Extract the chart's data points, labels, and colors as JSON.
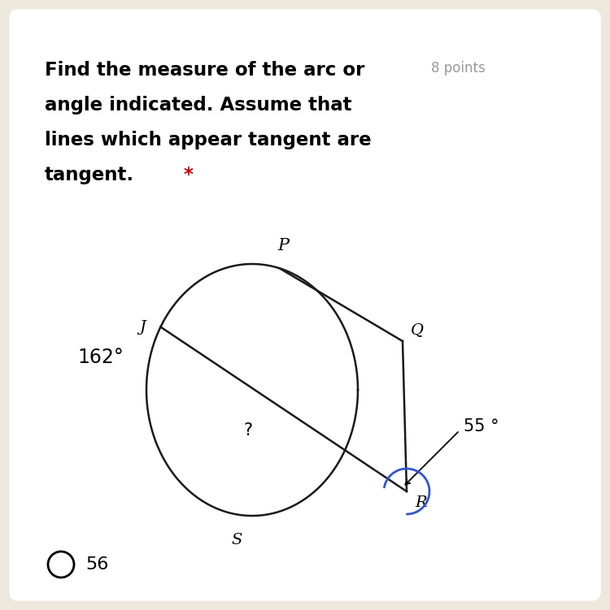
{
  "bg_color": "#ede8dc",
  "card_color": "#ffffff",
  "points_text": "8 points",
  "asterisk_color": "#cc0000",
  "title_fontsize": 16.5,
  "points_fontsize": 12,
  "arc_label": "162°",
  "angle_label": "55 °",
  "question_label": "?",
  "answer": "56",
  "label_P": "P",
  "label_Q": "Q",
  "label_J": "J",
  "label_S": "S",
  "label_R": "R",
  "line_color": "#1a1a1a",
  "blue_arc_color": "#3355cc"
}
